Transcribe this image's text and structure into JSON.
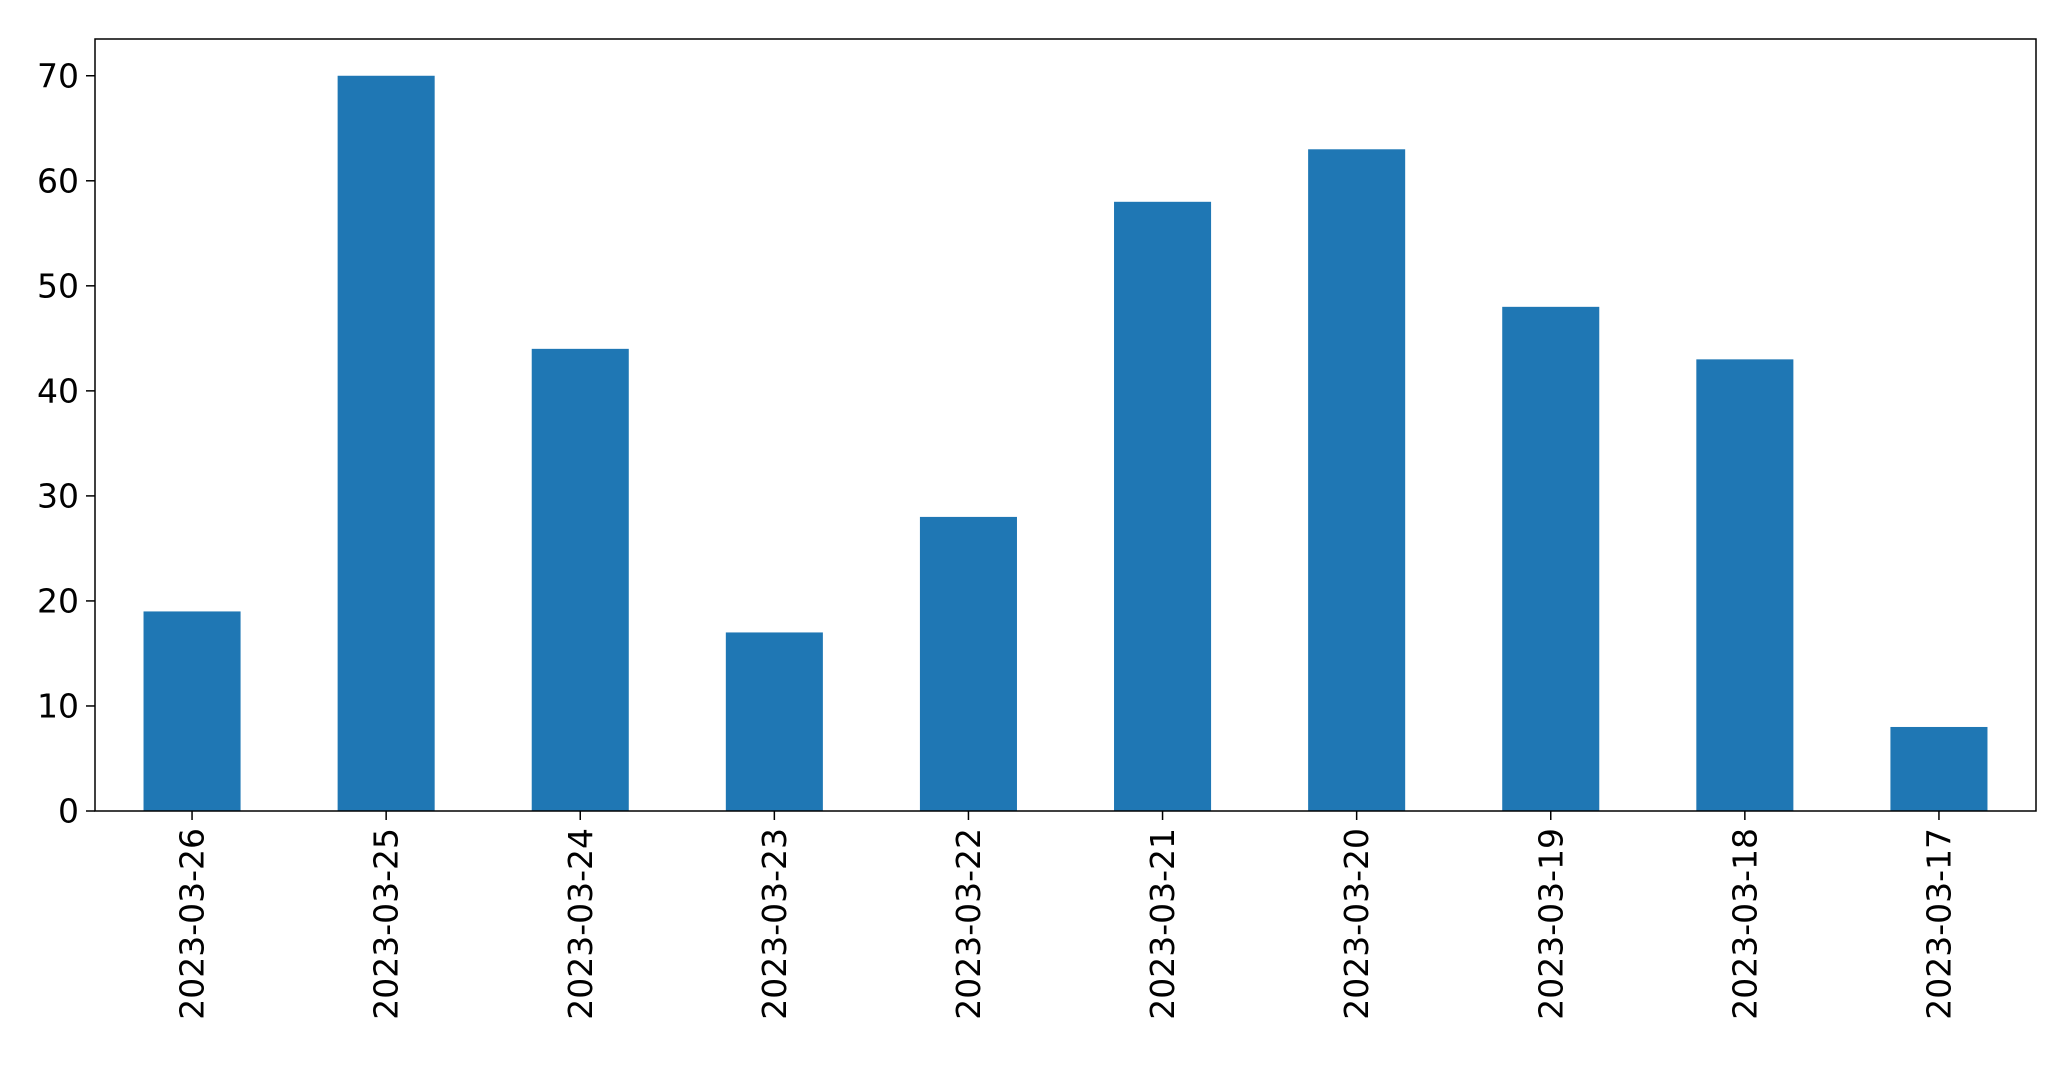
{
  "chart_data": {
    "type": "bar",
    "title": "",
    "xlabel": "",
    "ylabel": "",
    "categories": [
      "2023-03-26",
      "2023-03-25",
      "2023-03-24",
      "2023-03-23",
      "2023-03-22",
      "2023-03-21",
      "2023-03-20",
      "2023-03-19",
      "2023-03-18",
      "2023-03-17"
    ],
    "values": [
      19,
      70,
      44,
      17,
      28,
      58,
      63,
      48,
      43,
      8
    ],
    "ylim": [
      0,
      73.5
    ],
    "yticks": [
      0,
      10,
      20,
      30,
      40,
      50,
      60,
      70
    ],
    "ytick_labels": [
      "0",
      "10",
      "20",
      "30",
      "40",
      "50",
      "60",
      "70"
    ],
    "bar_color": "#1f77b4",
    "grid": false,
    "legend": "none"
  }
}
